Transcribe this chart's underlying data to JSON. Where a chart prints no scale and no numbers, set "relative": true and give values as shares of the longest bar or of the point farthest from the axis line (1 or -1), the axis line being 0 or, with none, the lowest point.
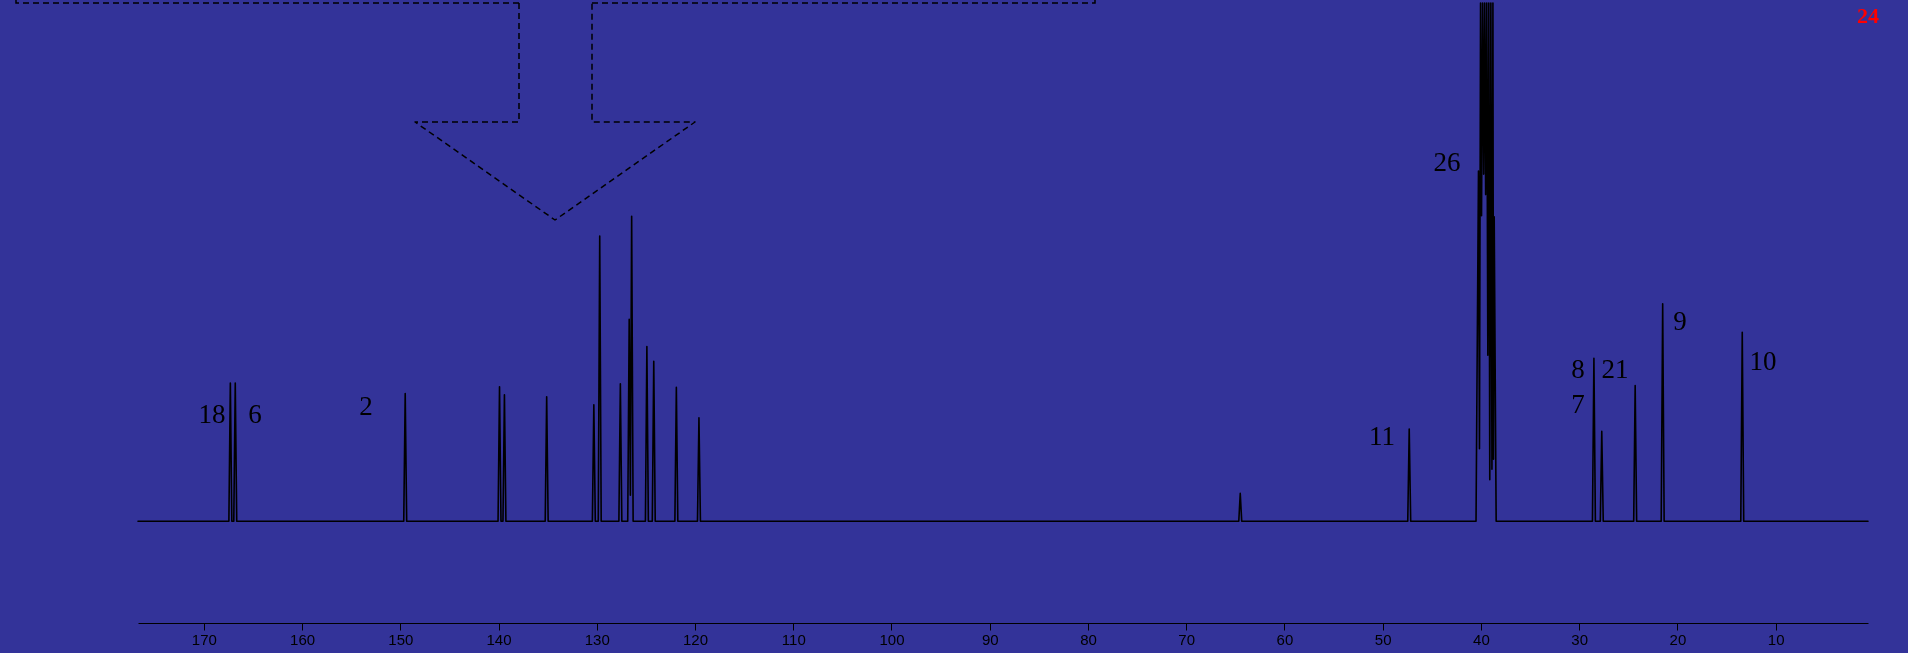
{
  "chart_data": {
    "type": "line",
    "relative": true,
    "xlim": [
      176.7,
      0.6
    ],
    "xticks": [
      170,
      160,
      150,
      140,
      130,
      120,
      110,
      100,
      90,
      80,
      70,
      60,
      50,
      40,
      30,
      20,
      10
    ],
    "tick_labels": "x",
    "grid": false,
    "marker": "none",
    "line_style": "solid",
    "series": [
      {
        "color": "#000000",
        "x": [
          176.7,
          167.45,
          167.3,
          167.15,
          166.95,
          166.8,
          166.65,
          149.65,
          149.5,
          149.35,
          140.05,
          139.9,
          139.75,
          139.55,
          139.4,
          139.25,
          135.25,
          135.1,
          134.95,
          130.45,
          130.3,
          130.15,
          129.85,
          129.7,
          129.55,
          127.75,
          127.6,
          127.45,
          126.85,
          126.7,
          126.58,
          126.45,
          126.3,
          125.05,
          124.9,
          124.75,
          124.35,
          124.2,
          124.05,
          122.05,
          121.9,
          121.75,
          119.75,
          119.6,
          119.45,
          64.65,
          64.5,
          64.35,
          47.45,
          47.3,
          47.15,
          40.5,
          40.25,
          40.15,
          40.04,
          39.94,
          39.83,
          39.72,
          39.62,
          39.52,
          39.41,
          39.3,
          39.2,
          39.1,
          38.99,
          38.88,
          38.78,
          38.72,
          38.65,
          38.45,
          28.65,
          28.5,
          28.35,
          27.85,
          27.7,
          27.55,
          24.45,
          24.3,
          24.15,
          21.65,
          21.5,
          21.35,
          13.55,
          13.4,
          13.25,
          0.6
        ],
        "values": [
          0.164,
          0.164,
          0.387,
          0.164,
          0.164,
          0.387,
          0.164,
          0.164,
          0.37,
          0.164,
          0.164,
          0.381,
          0.164,
          0.164,
          0.368,
          0.164,
          0.164,
          0.365,
          0.164,
          0.164,
          0.352,
          0.164,
          0.164,
          0.624,
          0.164,
          0.164,
          0.386,
          0.164,
          0.164,
          0.49,
          0.206,
          0.656,
          0.164,
          0.164,
          0.446,
          0.164,
          0.164,
          0.422,
          0.164,
          0.164,
          0.38,
          0.164,
          0.164,
          0.331,
          0.164,
          0.164,
          0.209,
          0.164,
          0.164,
          0.313,
          0.164,
          0.164,
          0.729,
          0.281,
          1,
          0.657,
          1,
          0.724,
          1,
          0.691,
          1,
          0.432,
          1,
          0.231,
          1,
          0.248,
          1,
          0.264,
          0.655,
          0.164,
          0.164,
          0.427,
          0.164,
          0.164,
          0.309,
          0.164,
          0.164,
          0.383,
          0.164,
          0.164,
          0.515,
          0.164,
          0.164,
          0.469,
          0.164,
          0.164
        ]
      }
    ],
    "annotations": [
      "18",
      "6",
      "2",
      "26",
      "11",
      "8",
      "7",
      "21",
      "9",
      "10",
      "24"
    ]
  }
}
